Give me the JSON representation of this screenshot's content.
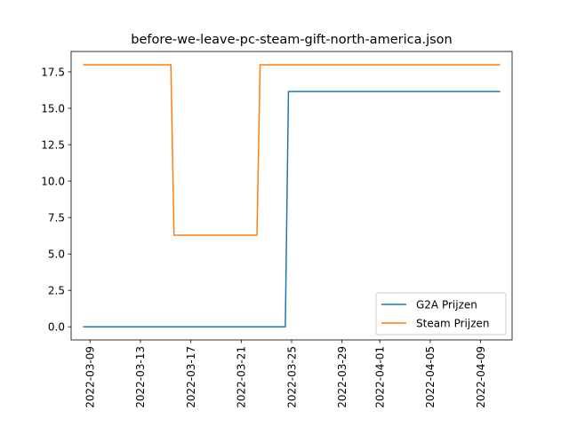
{
  "chart_data": {
    "type": "line",
    "title": "before-we-leave-pc-steam-gift-north-america.json",
    "xlabel": "",
    "ylabel": "",
    "x_type": "date",
    "xlim": [
      "2022-03-07T12:00",
      "2022-04-11T12:00"
    ],
    "ylim": [
      -0.9,
      18.9
    ],
    "x_ticks": [
      "2022-03-09",
      "2022-03-13",
      "2022-03-17",
      "2022-03-21",
      "2022-03-25",
      "2022-03-29",
      "2022-04-01",
      "2022-04-05",
      "2022-04-09"
    ],
    "y_ticks": [
      "0.0",
      "2.5",
      "5.0",
      "7.5",
      "10.0",
      "12.5",
      "15.0",
      "17.5"
    ],
    "legend_position": "lower-right",
    "grid": false,
    "series": [
      {
        "name": "G2A Prijzen",
        "color": "#1f77b4",
        "points": [
          {
            "x": "2022-03-08T12:00",
            "y": 0.0
          },
          {
            "x": "2022-03-24T12:00",
            "y": 0.0
          },
          {
            "x": "2022-03-24T18:00",
            "y": 16.15
          },
          {
            "x": "2022-04-10T12:00",
            "y": 16.15
          }
        ]
      },
      {
        "name": "Steam Prijzen",
        "color": "#ff7f0e",
        "points": [
          {
            "x": "2022-03-08T12:00",
            "y": 17.99
          },
          {
            "x": "2022-03-15T10:00",
            "y": 17.99
          },
          {
            "x": "2022-03-15T16:00",
            "y": 6.29
          },
          {
            "x": "2022-03-22T06:00",
            "y": 6.29
          },
          {
            "x": "2022-03-22T12:00",
            "y": 17.99
          },
          {
            "x": "2022-04-10T12:00",
            "y": 17.99
          }
        ]
      }
    ]
  }
}
